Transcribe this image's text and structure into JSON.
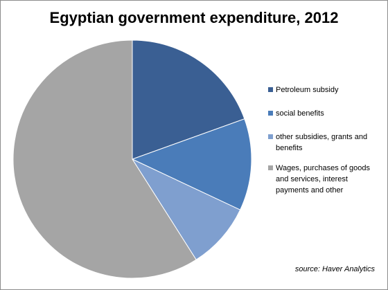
{
  "chart_data": {
    "type": "pie",
    "title": "Egyptian government expenditure, 2012",
    "slices": [
      {
        "label": "Petroleum subsidy",
        "value": 19.5,
        "color": "#3a5f93"
      },
      {
        "label": "social benefits",
        "value": 12.5,
        "color": "#4a7cb9"
      },
      {
        "label": "other subsidies, grants and benefits",
        "value": 9.0,
        "color": "#7f9fcf"
      },
      {
        "label": "Wages, purchases of goods and services, interest payments and other",
        "value": 59.0,
        "color": "#a5a5a5"
      }
    ],
    "legend_position": "right",
    "source": "source: Haver Analytics"
  }
}
